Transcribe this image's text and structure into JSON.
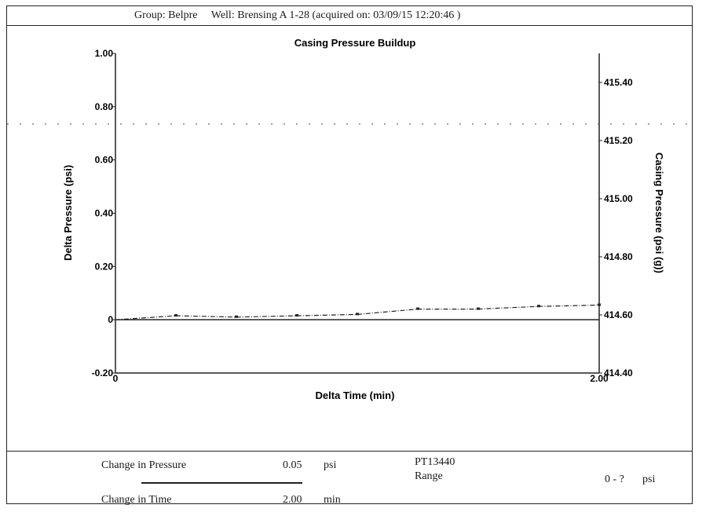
{
  "header": {
    "group": "Group: Belpre",
    "well": "Well: Brensing A 1-28 (acquired on: 03/09/15 12:20:46 )"
  },
  "chart_data": {
    "type": "line",
    "title": "Casing Pressure Buildup",
    "xlabel": "Delta Time (min)",
    "ylabel": "Delta Pressure (psi)",
    "y2label": "Casing Pressure (psi (g))",
    "xlim": [
      0,
      2.0
    ],
    "ylim": [
      -0.2,
      1.0
    ],
    "y2lim": [
      414.4,
      415.5
    ],
    "x_ticks": [
      "0",
      "2.00"
    ],
    "y_ticks": [
      {
        "v": 1.0,
        "label": "1.00"
      },
      {
        "v": 0.8,
        "label": "0.80"
      },
      {
        "v": 0.6,
        "label": "0.60"
      },
      {
        "v": 0.4,
        "label": "0.40"
      },
      {
        "v": 0.2,
        "label": "0.20"
      },
      {
        "v": 0.0,
        "label": "0"
      },
      {
        "v": -0.2,
        "label": "-0.20"
      }
    ],
    "y2_ticks": [
      {
        "v": 415.4,
        "label": "415.40"
      },
      {
        "v": 415.2,
        "label": "415.20"
      },
      {
        "v": 415.0,
        "label": "415.00"
      },
      {
        "v": 414.8,
        "label": "414.80"
      },
      {
        "v": 414.6,
        "label": "414.60"
      },
      {
        "v": 414.4,
        "label": "414.40"
      }
    ],
    "grid": false,
    "series": [
      {
        "values": [
          {
            "x": 0.0,
            "y": 0.0
          },
          {
            "x": 0.25,
            "y": 0.015
          },
          {
            "x": 0.5,
            "y": 0.01
          },
          {
            "x": 0.75,
            "y": 0.015
          },
          {
            "x": 1.0,
            "y": 0.02
          },
          {
            "x": 1.25,
            "y": 0.04
          },
          {
            "x": 1.5,
            "y": 0.04
          },
          {
            "x": 1.75,
            "y": 0.05
          },
          {
            "x": 2.0,
            "y": 0.055
          }
        ]
      }
    ],
    "reference_line_y": 0.0,
    "colors": {
      "line": "#222222"
    }
  },
  "footer": {
    "change_pressure_label": "Change in Pressure",
    "change_pressure_value": "0.05",
    "change_pressure_unit": "psi",
    "change_time_label": "Change in Time",
    "change_time_value": "2.00",
    "change_time_unit": "min",
    "gauge_id": "PT13440",
    "range_label": "Range",
    "range_value": "0 - ?",
    "range_unit": "psi"
  }
}
